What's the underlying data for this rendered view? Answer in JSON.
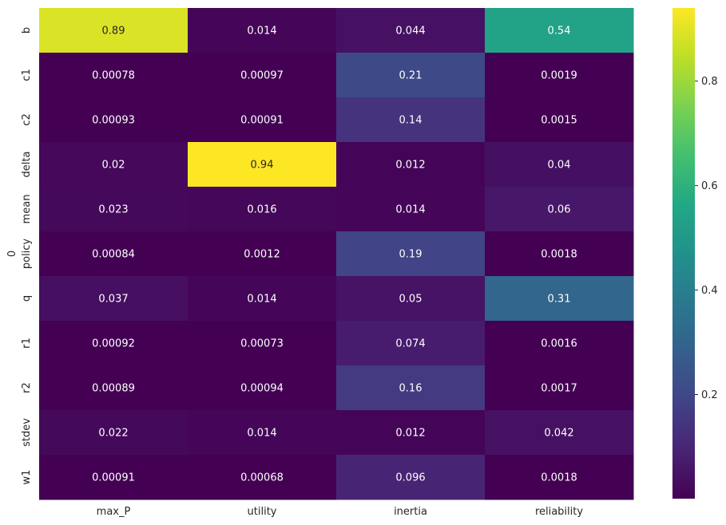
{
  "chart_data": {
    "type": "heatmap",
    "title": "",
    "xlabel": "",
    "ylabel": "0",
    "columns": [
      "max_P",
      "utility",
      "inertia",
      "reliability"
    ],
    "rows": [
      "b",
      "c1",
      "c2",
      "delta",
      "mean",
      "policy",
      "q",
      "r1",
      "r2",
      "stdev",
      "w1"
    ],
    "values": [
      [
        0.89,
        0.014,
        0.044,
        0.54
      ],
      [
        0.00078,
        0.00097,
        0.21,
        0.0019
      ],
      [
        0.00093,
        0.00091,
        0.14,
        0.0015
      ],
      [
        0.02,
        0.94,
        0.012,
        0.04
      ],
      [
        0.023,
        0.016,
        0.014,
        0.06
      ],
      [
        0.00084,
        0.0012,
        0.19,
        0.0018
      ],
      [
        0.037,
        0.014,
        0.05,
        0.31
      ],
      [
        0.00092,
        0.00073,
        0.074,
        0.0016
      ],
      [
        0.00089,
        0.00094,
        0.16,
        0.0017
      ],
      [
        0.022,
        0.014,
        0.012,
        0.042
      ],
      [
        0.00091,
        0.00068,
        0.096,
        0.0018
      ]
    ],
    "value_labels": [
      [
        "0.89",
        "0.014",
        "0.044",
        "0.54"
      ],
      [
        "0.00078",
        "0.00097",
        "0.21",
        "0.0019"
      ],
      [
        "0.00093",
        "0.00091",
        "0.14",
        "0.0015"
      ],
      [
        "0.02",
        "0.94",
        "0.012",
        "0.04"
      ],
      [
        "0.023",
        "0.016",
        "0.014",
        "0.06"
      ],
      [
        "0.00084",
        "0.0012",
        "0.19",
        "0.0018"
      ],
      [
        "0.037",
        "0.014",
        "0.05",
        "0.31"
      ],
      [
        "0.00092",
        "0.00073",
        "0.074",
        "0.0016"
      ],
      [
        "0.00089",
        "0.00094",
        "0.16",
        "0.0017"
      ],
      [
        "0.022",
        "0.014",
        "0.012",
        "0.042"
      ],
      [
        "0.00091",
        "0.00068",
        "0.096",
        "0.0018"
      ]
    ],
    "colormap": "viridis",
    "vmin": 0.00068,
    "vmax": 0.94,
    "colorbar": {
      "ticks": [
        0.2,
        0.4,
        0.6,
        0.8
      ],
      "tick_labels": [
        "0.2",
        "0.4",
        "0.6",
        "0.8"
      ]
    },
    "annotation_colors": {
      "light": "#ffffff",
      "dark": "#262626"
    },
    "legend": "colorbar-right",
    "grid": false
  }
}
